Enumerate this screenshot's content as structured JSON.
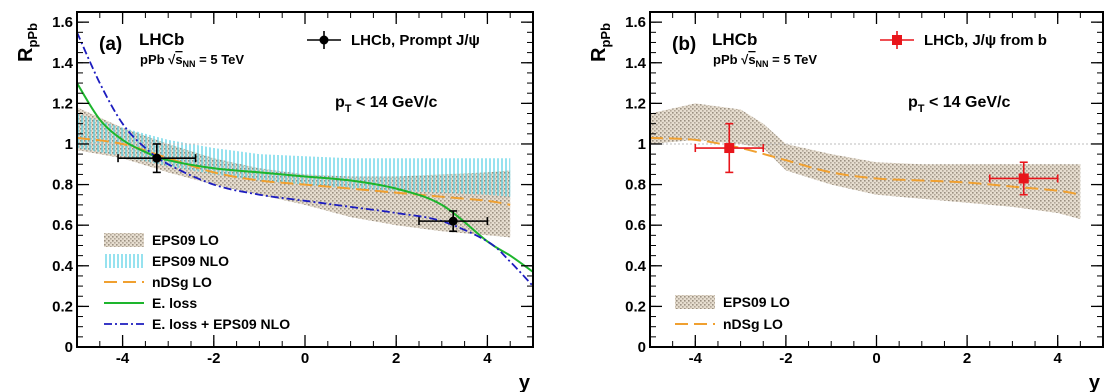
{
  "chart_data": [
    {
      "type": "line",
      "panel_label": "(a)",
      "experiment": "LHCb",
      "system": "pPb",
      "sqrt_symbol": "√",
      "energy_var": "s",
      "energy_sub": "NN",
      "energy_value": "= 5 TeV",
      "kinematic_main": "p",
      "kinematic_sub": "T",
      "kinematic_rest": "< 14 GeV/c",
      "xlabel": "y",
      "ylabel_main": "R",
      "ylabel_sub": "pPb",
      "xlim": [
        -5,
        5
      ],
      "ylim": [
        0,
        1.65
      ],
      "xticks": [
        "-4",
        "-2",
        "0",
        "2",
        "4"
      ],
      "yticks": [
        "0",
        "0.2",
        "0.4",
        "0.6",
        "0.8",
        "1",
        "1.2",
        "1.4",
        "1.6"
      ],
      "reference_line": 1.0,
      "data_legend": "LHCb, Prompt J/ψ",
      "data_points": [
        {
          "x": -3.25,
          "y": 0.93,
          "xerr": [
            0.85,
            0.85
          ],
          "yerr": [
            0.07,
            0.07
          ]
        },
        {
          "x": 3.25,
          "y": 0.62,
          "xerr": [
            0.75,
            0.75
          ],
          "yerr": [
            0.05,
            0.05
          ]
        }
      ],
      "legend": [
        "EPS09 LO",
        "EPS09 NLO",
        "nDSg LO",
        "E. loss",
        "E. loss + EPS09 NLO"
      ],
      "bands": [
        {
          "name": "EPS09 LO",
          "x": [
            -5,
            -4,
            -3,
            -2,
            -1,
            0,
            1,
            2,
            3,
            4,
            4.5
          ],
          "upper": [
            1.18,
            1.08,
            1.0,
            0.93,
            0.88,
            0.85,
            0.84,
            0.84,
            0.85,
            0.86,
            0.87
          ],
          "lower": [
            0.97,
            0.93,
            0.86,
            0.8,
            0.75,
            0.7,
            0.64,
            0.6,
            0.57,
            0.55,
            0.54
          ]
        },
        {
          "name": "EPS09 NLO",
          "x": [
            -5,
            -4,
            -3,
            -2,
            -1,
            0,
            1,
            2,
            3,
            4,
            4.5
          ],
          "upper": [
            1.15,
            1.08,
            1.02,
            0.98,
            0.95,
            0.94,
            0.93,
            0.93,
            0.93,
            0.93,
            0.93
          ],
          "lower": [
            0.98,
            0.94,
            0.89,
            0.85,
            0.82,
            0.8,
            0.78,
            0.77,
            0.76,
            0.75,
            0.74
          ]
        }
      ],
      "curves": [
        {
          "name": "nDSg LO",
          "x": [
            -5,
            -4,
            -3,
            -2,
            -1,
            0,
            1,
            2,
            3,
            4,
            4.5
          ],
          "y": [
            1.03,
            1.0,
            0.93,
            0.86,
            0.82,
            0.8,
            0.78,
            0.76,
            0.74,
            0.72,
            0.7
          ]
        },
        {
          "name": "E. loss",
          "x": [
            -5,
            -4.5,
            -4,
            -3.5,
            -3,
            -2,
            -1,
            0,
            1,
            2,
            3,
            4,
            4.5,
            5
          ],
          "y": [
            1.3,
            1.12,
            1.02,
            0.96,
            0.92,
            0.88,
            0.86,
            0.84,
            0.82,
            0.78,
            0.7,
            0.52,
            0.45,
            0.37
          ]
        },
        {
          "name": "E. loss + EPS09 NLO",
          "x": [
            -5,
            -4.5,
            -4,
            -3.5,
            -3,
            -2,
            -1,
            0,
            1,
            2,
            3,
            4,
            4.5,
            5
          ],
          "y": [
            1.55,
            1.3,
            1.1,
            0.98,
            0.9,
            0.8,
            0.75,
            0.72,
            0.69,
            0.66,
            0.62,
            0.52,
            0.42,
            0.3
          ]
        }
      ]
    },
    {
      "type": "line",
      "panel_label": "(b)",
      "experiment": "LHCb",
      "system": "pPb",
      "sqrt_symbol": "√",
      "energy_var": "s",
      "energy_sub": "NN",
      "energy_value": "= 5 TeV",
      "kinematic_main": "p",
      "kinematic_sub": "T",
      "kinematic_rest": "< 14 GeV/c",
      "xlabel": "y",
      "ylabel_main": "R",
      "ylabel_sub": "pPb",
      "xlim": [
        -5,
        5
      ],
      "ylim": [
        0,
        1.65
      ],
      "xticks": [
        "-4",
        "-2",
        "0",
        "2",
        "4"
      ],
      "yticks": [
        "0",
        "0.2",
        "0.4",
        "0.6",
        "0.8",
        "1",
        "1.2",
        "1.4",
        "1.6"
      ],
      "reference_line": 1.0,
      "data_legend": "LHCb, J/ψ from b",
      "data_points": [
        {
          "x": -3.25,
          "y": 0.98,
          "xerr": [
            0.75,
            0.75
          ],
          "yerr": [
            0.12,
            0.12
          ]
        },
        {
          "x": 3.25,
          "y": 0.83,
          "xerr": [
            0.75,
            0.75
          ],
          "yerr": [
            0.08,
            0.08
          ]
        }
      ],
      "legend": [
        "EPS09 LO",
        "nDSg LO"
      ],
      "bands": [
        {
          "name": "EPS09 LO",
          "x": [
            -5,
            -4,
            -3,
            -2.5,
            -2,
            -1,
            0,
            1,
            2,
            3,
            4,
            4.5
          ],
          "upper": [
            1.15,
            1.2,
            1.17,
            1.1,
            1.0,
            0.95,
            0.91,
            0.9,
            0.9,
            0.9,
            0.9,
            0.9
          ],
          "lower": [
            1.0,
            1.02,
            1.0,
            0.98,
            0.87,
            0.8,
            0.75,
            0.73,
            0.71,
            0.69,
            0.66,
            0.63
          ]
        }
      ],
      "curves": [
        {
          "name": "nDSg LO",
          "x": [
            -5,
            -4,
            -3,
            -2,
            -1,
            0,
            1,
            2,
            3,
            4,
            4.5
          ],
          "y": [
            1.03,
            1.02,
            0.98,
            0.92,
            0.86,
            0.83,
            0.82,
            0.81,
            0.79,
            0.77,
            0.75
          ]
        }
      ]
    }
  ]
}
